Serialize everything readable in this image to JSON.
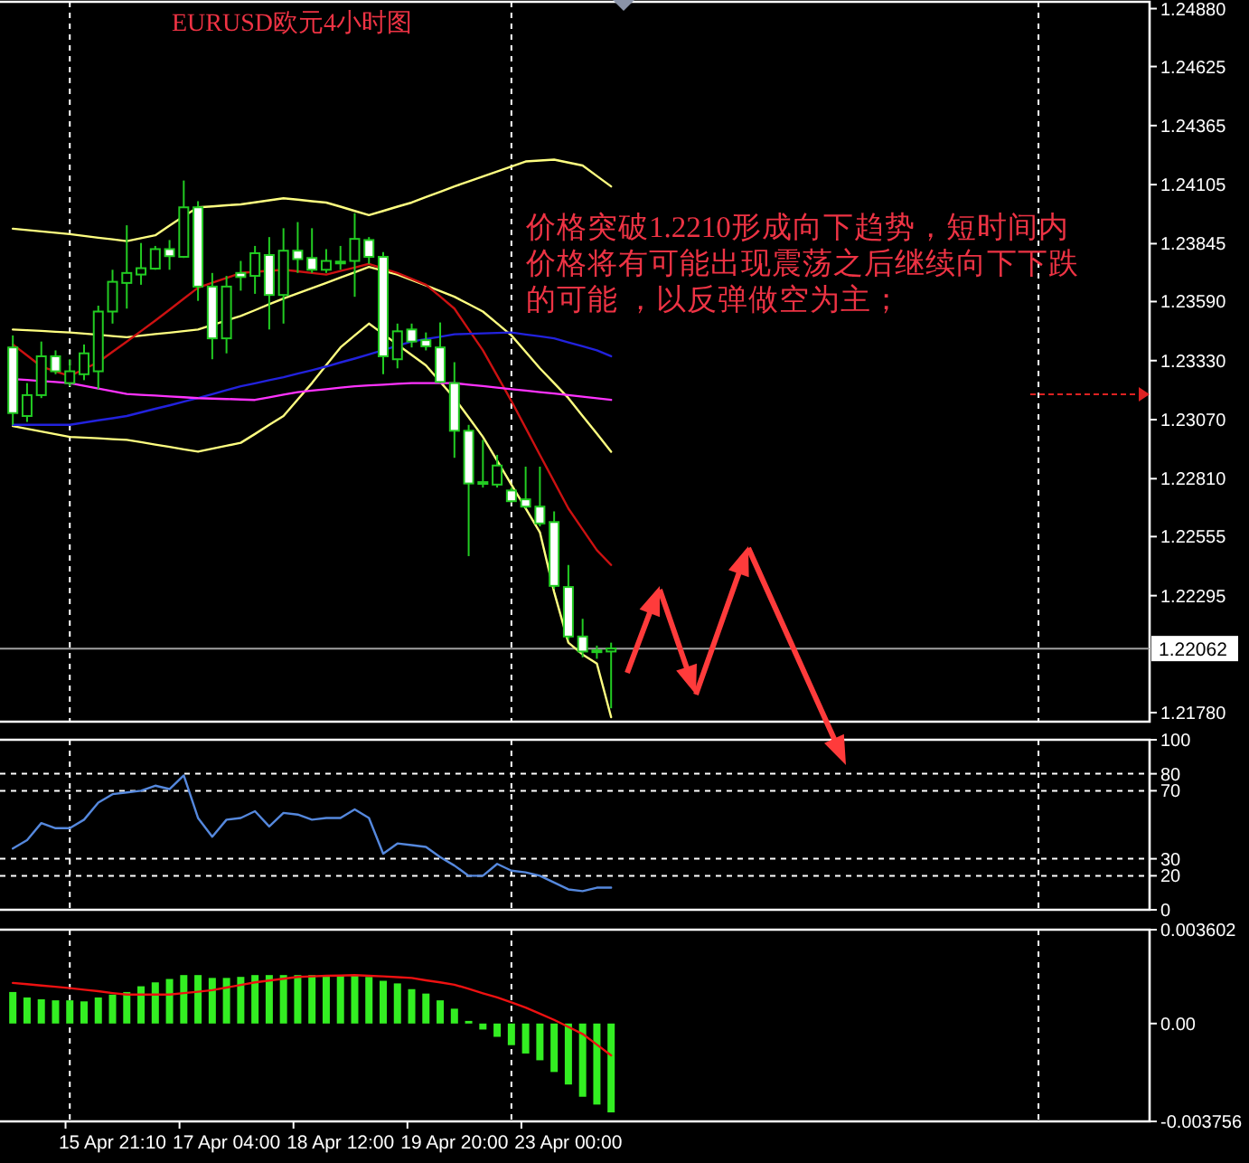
{
  "chart_data": [
    {
      "type": "candlestick",
      "title": "EURUSD欧元4小时图",
      "color": "#22cc22",
      "tick_labels": "y",
      "categories": [
        null,
        null,
        null,
        null,
        null,
        null,
        null,
        null,
        null,
        null,
        null,
        null,
        null,
        null,
        null,
        null,
        null,
        null,
        null,
        null,
        null,
        null,
        null,
        null,
        null,
        null,
        null,
        null,
        null,
        null,
        null,
        null,
        null,
        null,
        null,
        null,
        null,
        null,
        null,
        null,
        null,
        null,
        null
      ],
      "ohlc": [
        [
          1.23388,
          1.23441,
          1.23047,
          1.23099
        ],
        [
          1.23086,
          1.23231,
          1.2306,
          1.23178
        ],
        [
          1.23178,
          1.23414,
          1.23165,
          1.23349
        ],
        [
          1.23349,
          1.23375,
          1.2327,
          1.23283
        ],
        [
          1.23231,
          1.23336,
          1.23217,
          1.23283
        ],
        [
          1.2327,
          1.23401,
          1.23244,
          1.23362
        ],
        [
          1.23283,
          1.23572,
          1.23204,
          1.23546
        ],
        [
          1.23546,
          1.2373,
          1.23493,
          1.23677
        ],
        [
          1.23672,
          1.23926,
          1.23559,
          1.23716
        ],
        [
          1.23709,
          1.23848,
          1.23664,
          1.23737
        ],
        [
          1.23735,
          1.23835,
          1.2373,
          1.23821
        ],
        [
          1.23821,
          1.23861,
          1.2373,
          1.2379
        ],
        [
          1.23787,
          1.24123,
          1.23782,
          1.24005
        ],
        [
          1.24005,
          1.24032,
          1.23593,
          1.23656
        ],
        [
          1.23656,
          1.23716,
          1.23336,
          1.23428
        ],
        [
          1.23428,
          1.23703,
          1.23362,
          1.23656
        ],
        [
          1.23716,
          1.23769,
          1.23638,
          1.23698
        ],
        [
          1.23703,
          1.23835,
          1.23624,
          1.23803
        ],
        [
          1.23795,
          1.23874,
          1.23467,
          1.23619
        ],
        [
          1.23619,
          1.23913,
          1.23493,
          1.23814
        ],
        [
          1.23814,
          1.2394,
          1.23716,
          1.23777
        ],
        [
          1.23782,
          1.23913,
          1.23716,
          1.2373
        ],
        [
          1.2373,
          1.23821,
          1.23716,
          1.23769
        ],
        [
          1.23766,
          1.23835,
          1.2373,
          1.23761
        ],
        [
          1.23769,
          1.23979,
          1.23611,
          1.23866
        ],
        [
          1.23861,
          1.23874,
          1.23756,
          1.23787
        ],
        [
          1.23787,
          1.23808,
          1.2327,
          1.23349
        ],
        [
          1.23336,
          1.23493,
          1.23296,
          1.23459
        ],
        [
          1.23467,
          1.23493,
          1.23388,
          1.23414
        ],
        [
          1.2342,
          1.23454,
          1.23375,
          1.23393
        ],
        [
          1.23388,
          1.23498,
          1.23231,
          1.23236
        ],
        [
          1.23231,
          1.23323,
          1.22902,
          1.23021
        ],
        [
          1.23021,
          1.23047,
          1.22469,
          1.22789
        ],
        [
          1.22795,
          1.22981,
          1.22771,
          1.22787
        ],
        [
          1.22784,
          1.22915,
          1.22771,
          1.22868
        ],
        [
          1.22758,
          1.22771,
          1.22705,
          1.22711
        ],
        [
          1.22719,
          1.22863,
          1.22679,
          1.22687
        ],
        [
          1.22687,
          1.22863,
          1.226,
          1.22613
        ],
        [
          1.22619,
          1.22666,
          1.22325,
          1.22338
        ],
        [
          1.22333,
          1.2243,
          1.22101,
          1.22115
        ],
        [
          1.22115,
          1.22193,
          1.22023,
          1.22049
        ],
        [
          1.22054,
          1.22075,
          1.22017,
          1.22049
        ],
        [
          1.22049,
          1.22088,
          1.21799,
          1.22062
        ]
      ],
      "series": [
        {
          "type": "line",
          "color": "#ffff80",
          "values": [
            1.23911,
            1.23905,
            1.23899,
            1.23893,
            1.23887,
            1.23879,
            1.23871,
            1.23864,
            1.23856,
            1.23869,
            1.23882,
            1.23924,
            1.23966,
            1.24005,
            1.24009,
            1.24014,
            1.24018,
            1.24027,
            1.24036,
            1.24045,
            1.24039,
            1.24032,
            1.24026,
            1.24008,
            1.23989,
            1.23971,
            1.23989,
            1.24008,
            1.24026,
            1.2405,
            1.24073,
            1.24097,
            1.24119,
            1.24141,
            1.24163,
            1.24185,
            1.24207,
            1.24211,
            1.24215,
            1.24202,
            1.24189,
            1.24143,
            1.24097
          ]
        },
        {
          "type": "line",
          "color": "#ffff80",
          "values": [
            1.23467,
            1.23464,
            1.23461,
            1.23457,
            1.23454,
            1.23449,
            1.23444,
            1.23438,
            1.23433,
            1.2344,
            1.23447,
            1.23453,
            1.2346,
            1.23467,
            1.23487,
            1.23507,
            1.23527,
            1.23552,
            1.23578,
            1.23603,
            1.23626,
            1.23649,
            1.23672,
            1.23696,
            1.23719,
            1.23743,
            1.23726,
            1.23709,
            1.23685,
            1.23661,
            1.23636,
            1.23611,
            1.23579,
            1.23546,
            1.23494,
            1.23441,
            1.23369,
            1.23296,
            1.23231,
            1.23165,
            1.23086,
            1.23008,
            1.22929
          ]
        },
        {
          "type": "line",
          "color": "#ffff80",
          "values": [
            1.23042,
            1.2303,
            1.23018,
            1.23006,
            1.22994,
            1.22991,
            1.22988,
            1.22984,
            1.22981,
            1.22971,
            1.2296,
            1.2295,
            1.22939,
            1.22929,
            1.22942,
            1.22955,
            1.22968,
            1.23007,
            1.23047,
            1.23086,
            1.23159,
            1.23231,
            1.2331,
            1.23388,
            1.23441,
            1.23493,
            1.23447,
            1.23401,
            1.23355,
            1.23309,
            1.23237,
            1.23165,
            1.2308,
            1.22994,
            1.22889,
            1.22784,
            1.22679,
            1.22574,
            1.22311,
            1.22088,
            1.22036,
            1.21996,
            1.2176
          ]
        },
        {
          "type": "line",
          "color": "#cc1111",
          "values": [
            1.23401,
            1.23353,
            1.23304,
            1.23283,
            1.23262,
            1.23293,
            1.23323,
            1.23369,
            1.23414,
            1.2346,
            1.23506,
            1.23554,
            1.23603,
            1.23651,
            1.23673,
            1.23694,
            1.23716,
            1.23721,
            1.23725,
            1.2373,
            1.23723,
            1.23716,
            1.23709,
            1.23725,
            1.2374,
            1.23756,
            1.23736,
            1.23716,
            1.2369,
            1.23664,
            1.23612,
            1.23559,
            1.23467,
            1.23375,
            1.23264,
            1.23152,
            1.23034,
            1.22915,
            1.22797,
            1.22679,
            1.22587,
            1.22495,
            1.2243
          ]
        },
        {
          "type": "line",
          "color": "#2222dd",
          "values": [
            1.23047,
            1.23047,
            1.23047,
            1.23047,
            1.23047,
            1.23057,
            1.23067,
            1.23076,
            1.23086,
            1.23102,
            1.23118,
            1.23133,
            1.23149,
            1.23165,
            1.23182,
            1.232,
            1.23217,
            1.2323,
            1.23244,
            1.23257,
            1.23273,
            1.23288,
            1.23304,
            1.23322,
            1.23339,
            1.23357,
            1.23376,
            1.23395,
            1.23414,
            1.23425,
            1.23435,
            1.23446,
            1.23448,
            1.2345,
            1.23452,
            1.23454,
            1.23445,
            1.23437,
            1.23428,
            1.2341,
            1.23393,
            1.23375,
            1.23349
          ]
        },
        {
          "type": "line",
          "color": "#ff33ff",
          "values": [
            1.23249,
            1.23245,
            1.2324,
            1.23236,
            1.23231,
            1.23219,
            1.23207,
            1.23195,
            1.23183,
            1.23179,
            1.23176,
            1.23172,
            1.23169,
            1.23165,
            1.23163,
            1.23161,
            1.23159,
            1.23157,
            1.23168,
            1.2318,
            1.23191,
            1.23198,
            1.23204,
            1.23211,
            1.23217,
            1.23221,
            1.23224,
            1.23228,
            1.23231,
            1.23231,
            1.23231,
            1.23231,
            1.23224,
            1.23218,
            1.23211,
            1.23204,
            1.23198,
            1.23191,
            1.23185,
            1.23178,
            1.23171,
            1.23164,
            1.23157
          ]
        }
      ],
      "ylim": [
        1.2174,
        1.2491
      ],
      "yticks": [
        {
          "value": 1.2488,
          "label": "1.24880"
        },
        {
          "value": 1.24625,
          "label": "1.24625"
        },
        {
          "value": 1.24365,
          "label": "1.24365"
        },
        {
          "value": 1.24105,
          "label": "1.24105"
        },
        {
          "value": 1.23845,
          "label": "1.23845"
        },
        {
          "value": 1.2359,
          "label": "1.23590"
        },
        {
          "value": 1.2333,
          "label": "1.23330"
        },
        {
          "value": 1.2307,
          "label": "1.23070"
        },
        {
          "value": 1.2281,
          "label": "1.22810"
        },
        {
          "value": 1.22555,
          "label": "1.22555"
        },
        {
          "value": 1.22295,
          "label": "1.22295"
        },
        {
          "value": 1.2178,
          "label": "1.21780"
        }
      ],
      "ref_lines": [
        {
          "axis": "y",
          "value": 1.22062,
          "label": "1.22062",
          "color": "#a0a0a0"
        }
      ],
      "annotations": [
        "价格突破1.2210形成向下趋势，短时间内",
        "价格将有可能出现震荡之后继续向下下跌",
        "的可能 ，以反弹做空为主；"
      ]
    },
    {
      "type": "line",
      "color": "#5588dd",
      "tick_labels": "y",
      "categories": [
        null,
        null,
        null,
        null,
        null,
        null,
        null,
        null,
        null,
        null,
        null,
        null,
        null,
        null,
        null,
        null,
        null,
        null,
        null,
        null,
        null,
        null,
        null,
        null,
        null,
        null,
        null,
        null,
        null,
        null,
        null,
        null,
        null,
        null,
        null,
        null,
        null,
        null,
        null,
        null,
        null,
        null,
        null
      ],
      "values": [
        36,
        41,
        51,
        48,
        48,
        53,
        63,
        68,
        69,
        70,
        73,
        71,
        79,
        54,
        43,
        53,
        54,
        58,
        49,
        57,
        56,
        53,
        54,
        54,
        59,
        54,
        33,
        39,
        38,
        37,
        31,
        26,
        20,
        20,
        27,
        23,
        22,
        20,
        16,
        12,
        11,
        13,
        13
      ],
      "ylim": [
        0,
        100
      ],
      "yticks": [
        0,
        20,
        30,
        70,
        80,
        100
      ],
      "ref_lines": [
        {
          "axis": "y",
          "value": 80,
          "color": "#ffffff",
          "line_style": "dashed"
        },
        {
          "axis": "y",
          "value": 70,
          "color": "#ffffff",
          "line_style": "dashed"
        },
        {
          "axis": "y",
          "value": 30,
          "color": "#ffffff",
          "line_style": "dashed"
        },
        {
          "axis": "y",
          "value": 20,
          "color": "#ffffff",
          "line_style": "dashed"
        }
      ]
    },
    {
      "type": "bar",
      "categories": [
        null,
        null,
        null,
        null,
        null,
        null,
        null,
        "15 Apr 21:10",
        null,
        null,
        null,
        null,
        null,
        null,
        null,
        "17 Apr 04:00",
        null,
        null,
        null,
        null,
        null,
        null,
        null,
        "18 Apr 12:00",
        null,
        null,
        null,
        null,
        null,
        null,
        null,
        "19 Apr 20:00",
        null,
        null,
        null,
        null,
        null,
        null,
        null,
        "23 Apr 00:00",
        null,
        null,
        null
      ],
      "series": [
        {
          "type": "bar",
          "color": "#33ee22",
          "values": [
            0.00121,
            0.001,
            0.00093,
            0.00089,
            0.00089,
            0.00085,
            0.001,
            0.00111,
            0.00121,
            0.00143,
            0.00158,
            0.00171,
            0.00186,
            0.00186,
            0.00175,
            0.00175,
            0.00179,
            0.00186,
            0.00186,
            0.00186,
            0.00186,
            0.00186,
            0.00186,
            0.00186,
            0.00186,
            0.00179,
            0.00164,
            0.00154,
            0.00132,
            0.00115,
            0.00089,
            0.00057,
            0.0001,
            -0.00023,
            -0.00051,
            -0.00083,
            -0.00115,
            -0.00141,
            -0.00186,
            -0.00234,
            -0.00281,
            -0.00311,
            -0.00341
          ]
        },
        {
          "type": "line",
          "color": "#ee1111",
          "values": [
            0.00156,
            0.00151,
            0.00146,
            0.00141,
            0.00136,
            0.0013,
            0.00124,
            0.00117,
            0.00111,
            0.00111,
            0.00111,
            0.00111,
            0.00117,
            0.00122,
            0.00128,
            0.00138,
            0.00148,
            0.00158,
            0.00165,
            0.00172,
            0.00179,
            0.00181,
            0.00183,
            0.00184,
            0.00186,
            0.00183,
            0.00181,
            0.00178,
            0.00175,
            0.00166,
            0.00158,
            0.00149,
            0.00133,
            0.00116,
            0.001,
            0.00081,
            0.00061,
            0.00038,
            0.00014,
            -0.00013,
            -0.0004,
            -0.00081,
            -0.00122
          ]
        }
      ],
      "ylim": [
        -0.003756,
        0.003602
      ],
      "yticks": [
        0.003602,
        {
          "value": 0,
          "label": "0.00"
        },
        -0.003756
      ]
    }
  ]
}
